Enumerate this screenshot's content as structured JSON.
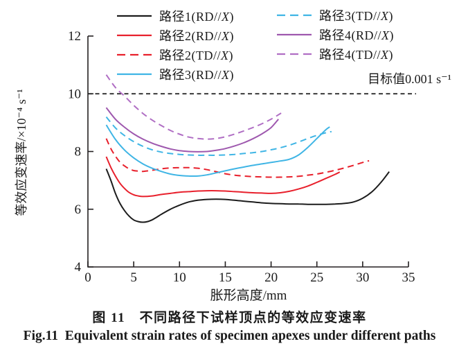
{
  "figure": {
    "caption_zh": "图 11　不同路径下试样顶点的等效应变速率",
    "caption_en": "Fig.11  Equivalent strain rates of specimen apexes under different paths"
  },
  "chart_data": {
    "type": "line",
    "xlabel": "胀形高度/mm",
    "ylabel": "等效应变速率/×10⁻⁴ s⁻¹",
    "xlim": [
      0,
      35
    ],
    "ylim": [
      4,
      12
    ],
    "xticks": [
      0,
      5,
      10,
      15,
      20,
      25,
      30,
      35
    ],
    "yticks": [
      4,
      6,
      8,
      10,
      12
    ],
    "grid": false,
    "legend_position": "top-two-columns",
    "axis_color": "#231f20",
    "target_line": {
      "value": 10,
      "label": "目标值0.001 s⁻¹",
      "style": "dashed",
      "color": "#1c1c1c"
    },
    "series": [
      {
        "id": "path1-rdx",
        "name": "路径1(RD//X)",
        "color": "#1c1c1c",
        "dash": false,
        "x": [
          2,
          2.5,
          3,
          3.5,
          4,
          4.5,
          5,
          5.5,
          6,
          6.5,
          7,
          7.5,
          8,
          9,
          10,
          11,
          12,
          13,
          14,
          15,
          16,
          17,
          18,
          19,
          20,
          21,
          22,
          23,
          24,
          25,
          26,
          27,
          28,
          29,
          30,
          31,
          32,
          32.9
        ],
        "y": [
          7.4,
          7.0,
          6.55,
          6.2,
          5.95,
          5.76,
          5.63,
          5.57,
          5.55,
          5.57,
          5.63,
          5.72,
          5.82,
          6.0,
          6.14,
          6.25,
          6.31,
          6.34,
          6.35,
          6.34,
          6.31,
          6.28,
          6.25,
          6.22,
          6.2,
          6.19,
          6.18,
          6.18,
          6.17,
          6.17,
          6.17,
          6.18,
          6.2,
          6.25,
          6.38,
          6.6,
          6.93,
          7.3
        ]
      },
      {
        "id": "path2-rdx",
        "name": "路径2(RD//X)",
        "color": "#e8202c",
        "dash": false,
        "x": [
          2,
          2.5,
          3,
          3.5,
          4,
          4.5,
          5,
          5.5,
          6,
          7,
          8,
          9,
          10,
          11,
          12,
          13,
          14,
          15,
          16,
          17,
          18,
          19,
          20,
          21,
          22,
          23,
          24,
          25,
          26,
          27,
          27.5
        ],
        "y": [
          7.82,
          7.45,
          7.15,
          6.9,
          6.72,
          6.58,
          6.5,
          6.46,
          6.44,
          6.46,
          6.51,
          6.55,
          6.59,
          6.61,
          6.63,
          6.64,
          6.64,
          6.63,
          6.61,
          6.59,
          6.57,
          6.56,
          6.55,
          6.57,
          6.62,
          6.7,
          6.8,
          6.93,
          7.07,
          7.21,
          7.29
        ]
      },
      {
        "id": "path2-tdx",
        "name": "路径2(TD//X)",
        "color": "#e8202c",
        "dash": true,
        "x": [
          2,
          2.5,
          3,
          3.5,
          4,
          4.5,
          5,
          5.5,
          6,
          7,
          8,
          9,
          10,
          11,
          12,
          13,
          14,
          15,
          16,
          17,
          18,
          19,
          20,
          21,
          22,
          23,
          24,
          25,
          26,
          27,
          28,
          29,
          30,
          30.7
        ],
        "y": [
          8.45,
          8.1,
          7.84,
          7.63,
          7.5,
          7.4,
          7.34,
          7.32,
          7.31,
          7.35,
          7.4,
          7.43,
          7.44,
          7.44,
          7.42,
          7.37,
          7.3,
          7.23,
          7.18,
          7.15,
          7.13,
          7.12,
          7.11,
          7.11,
          7.12,
          7.14,
          7.18,
          7.22,
          7.28,
          7.35,
          7.43,
          7.52,
          7.62,
          7.68
        ]
      },
      {
        "id": "path3-rdx",
        "name": "路径3(RD//X)",
        "color": "#3fb5e5",
        "dash": false,
        "x": [
          2,
          3,
          4,
          5,
          6,
          7,
          8,
          9,
          10,
          11,
          12,
          13,
          14,
          15,
          16,
          17,
          18,
          19,
          20,
          21,
          22,
          23,
          24,
          25,
          26,
          26.4
        ],
        "y": [
          8.92,
          8.42,
          8.05,
          7.78,
          7.57,
          7.42,
          7.31,
          7.22,
          7.17,
          7.15,
          7.15,
          7.19,
          7.26,
          7.33,
          7.4,
          7.46,
          7.52,
          7.57,
          7.62,
          7.67,
          7.73,
          7.88,
          8.14,
          8.45,
          8.76,
          8.85
        ]
      },
      {
        "id": "path3-tdx",
        "name": "路径3(TD//X)",
        "color": "#3fb5e5",
        "dash": true,
        "x": [
          2,
          3,
          4,
          5,
          6,
          7,
          8,
          9,
          10,
          11,
          12,
          13,
          14,
          15,
          16,
          17,
          18,
          19,
          20,
          21,
          22,
          23,
          24,
          25,
          26,
          26.6
        ],
        "y": [
          9.2,
          8.82,
          8.55,
          8.34,
          8.18,
          8.06,
          7.98,
          7.93,
          7.9,
          7.88,
          7.87,
          7.87,
          7.87,
          7.88,
          7.9,
          7.93,
          7.96,
          8.0,
          8.06,
          8.13,
          8.22,
          8.33,
          8.45,
          8.56,
          8.65,
          8.69
        ]
      },
      {
        "id": "path4-rdx",
        "name": "路径4(RD//X)",
        "color": "#9e58ae",
        "dash": false,
        "x": [
          2,
          3,
          4,
          5,
          6,
          7,
          8,
          9,
          10,
          11,
          12,
          13,
          14,
          15,
          16,
          17,
          18,
          19,
          20,
          20.8
        ],
        "y": [
          9.52,
          9.12,
          8.84,
          8.61,
          8.43,
          8.29,
          8.18,
          8.09,
          8.03,
          8.0,
          7.99,
          8.0,
          8.04,
          8.1,
          8.19,
          8.3,
          8.44,
          8.61,
          8.83,
          9.12
        ]
      },
      {
        "id": "path4-tdx",
        "name": "路径4(TD//X)",
        "color": "#b06ec4",
        "dash": true,
        "x": [
          2,
          2.5,
          3,
          3.5,
          4,
          5,
          6,
          7,
          8,
          9,
          10,
          11,
          12,
          13,
          14,
          15,
          16,
          17,
          18,
          19,
          20,
          21.1
        ],
        "y": [
          10.66,
          10.43,
          10.22,
          10.06,
          9.92,
          9.6,
          9.32,
          9.09,
          8.9,
          8.73,
          8.6,
          8.5,
          8.45,
          8.43,
          8.45,
          8.51,
          8.6,
          8.71,
          8.83,
          8.96,
          9.12,
          9.33
        ]
      }
    ]
  },
  "legend": {
    "columns": [
      [
        0,
        1,
        2,
        3
      ],
      [
        4,
        5,
        6
      ]
    ]
  }
}
